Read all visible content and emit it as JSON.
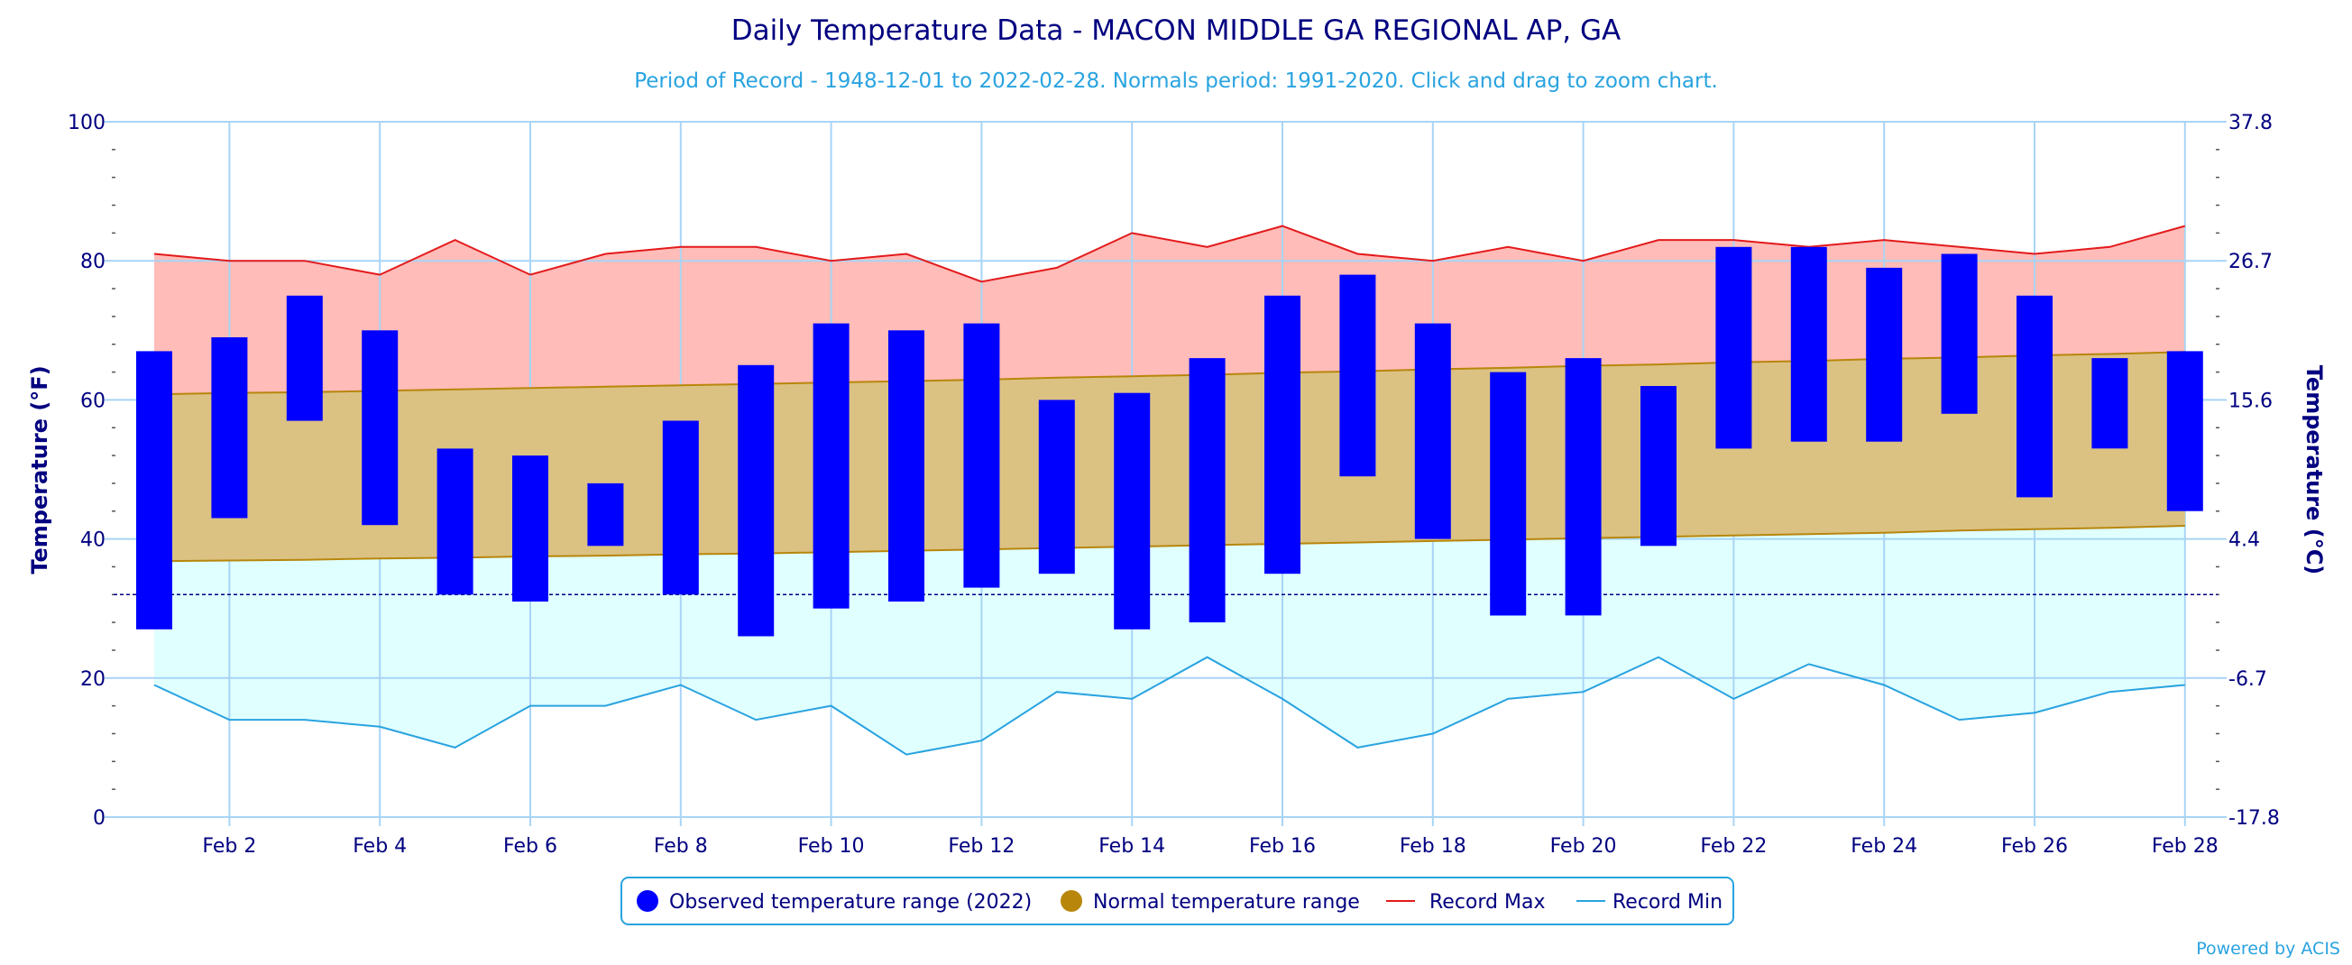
{
  "chart_data": {
    "type": "bar",
    "title": "Daily Temperature Data - MACON MIDDLE GA REGIONAL AP, GA",
    "subtitle": "Period of Record - 1948-12-01 to 2022-02-28. Normals period: 1991-2020. Click and drag to zoom chart.",
    "ylabel_left": "Temperature (°F)",
    "ylabel_right": "Temperature (°C)",
    "ylim": [
      0,
      100
    ],
    "y_ticks_left": [
      "0",
      "20",
      "40",
      "60",
      "80",
      "100"
    ],
    "y_ticks_right": [
      "-17.8",
      "-6.7",
      "4.4",
      "15.6",
      "26.7",
      "37.8"
    ],
    "x_tick_labels": [
      "Feb 2",
      "Feb 4",
      "Feb 6",
      "Feb 8",
      "Feb 10",
      "Feb 12",
      "Feb 14",
      "Feb 16",
      "Feb 18",
      "Feb 20",
      "Feb 22",
      "Feb 24",
      "Feb 26",
      "Feb 28"
    ],
    "x_tick_days": [
      2,
      4,
      6,
      8,
      10,
      12,
      14,
      16,
      18,
      20,
      22,
      24,
      26,
      28
    ],
    "days": [
      1,
      2,
      3,
      4,
      5,
      6,
      7,
      8,
      9,
      10,
      11,
      12,
      13,
      14,
      15,
      16,
      17,
      18,
      19,
      20,
      21,
      22,
      23,
      24,
      25,
      26,
      27,
      28
    ],
    "freezing_line": 32,
    "grid": true,
    "legend_position": "bottom",
    "series": [
      {
        "name": "Observed temperature range (2022)",
        "color": "#0000ff",
        "low": [
          27,
          43,
          57,
          42,
          32,
          31,
          39,
          32,
          26,
          30,
          31,
          33,
          35,
          27,
          28,
          35,
          49,
          40,
          29,
          29,
          39,
          53,
          54,
          54,
          58,
          46,
          53,
          44
        ],
        "high": [
          67,
          69,
          75,
          70,
          53,
          52,
          48,
          57,
          65,
          71,
          70,
          71,
          60,
          61,
          66,
          75,
          78,
          71,
          64,
          66,
          62,
          82,
          82,
          79,
          81,
          75,
          66,
          67
        ]
      },
      {
        "name": "Normal temperature range",
        "color": "#b8860b",
        "low": [
          36.8,
          36.9,
          37.0,
          37.2,
          37.3,
          37.5,
          37.6,
          37.8,
          37.9,
          38.1,
          38.3,
          38.5,
          38.7,
          38.9,
          39.1,
          39.3,
          39.5,
          39.7,
          39.9,
          40.1,
          40.3,
          40.5,
          40.7,
          40.9,
          41.2,
          41.4,
          41.6,
          41.9
        ],
        "high": [
          60.8,
          61.0,
          61.1,
          61.3,
          61.5,
          61.7,
          61.9,
          62.1,
          62.3,
          62.5,
          62.7,
          62.9,
          63.2,
          63.4,
          63.6,
          63.9,
          64.1,
          64.4,
          64.6,
          64.9,
          65.1,
          65.4,
          65.6,
          65.9,
          66.1,
          66.4,
          66.6,
          66.9
        ]
      },
      {
        "name": "Record Max",
        "color": "#e31a1c",
        "values": [
          81,
          80,
          80,
          78,
          83,
          78,
          81,
          82,
          82,
          80,
          81,
          77,
          79,
          84,
          82,
          85,
          81,
          80,
          82,
          80,
          83,
          83,
          82,
          83,
          82,
          81,
          82,
          85
        ]
      },
      {
        "name": "Record Min",
        "color": "#29a3e0",
        "values": [
          19,
          14,
          14,
          13,
          10,
          16,
          16,
          19,
          14,
          16,
          9,
          11,
          18,
          17,
          23,
          17,
          10,
          12,
          17,
          18,
          23,
          17,
          22,
          19,
          14,
          15,
          18,
          19
        ]
      }
    ],
    "colors": {
      "title": "#000080",
      "subtitle": "#29a3e0",
      "axis_text": "#000080",
      "record_band": "#ffbcb8",
      "normal_band": "#dbc283",
      "cold_band": "#e0ffff",
      "grid": "#a8d4f5"
    }
  },
  "footer": {
    "credit": "Powered by ACIS"
  }
}
